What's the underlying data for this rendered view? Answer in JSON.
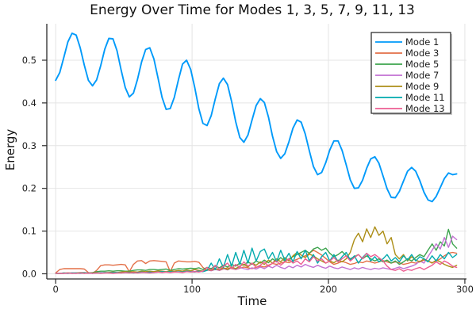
{
  "chart_data": {
    "type": "line",
    "title": "Energy Over Time for Modes 1, 3, 5, 7, 9, 11, 13",
    "xlabel": "Time",
    "ylabel": "Energy",
    "xlim": [
      -6.5,
      301.2
    ],
    "ylim": [
      -0.0121,
      0.5853
    ],
    "xticks": [
      0,
      100,
      200,
      300
    ],
    "yticks": [
      0.0,
      0.1,
      0.2,
      0.3,
      0.4,
      0.5
    ],
    "grid": true,
    "legend_position": "top-right",
    "background": "#ffffff",
    "grid_color": "#e4e4e4",
    "axis_color": "#2a2a2a",
    "text_color": "#1c1c1c",
    "x": [
      0,
      3,
      6,
      9,
      12,
      15,
      18,
      21,
      24,
      27,
      30,
      33,
      36,
      39,
      42,
      45,
      48,
      51,
      54,
      57,
      60,
      63,
      66,
      69,
      72,
      75,
      78,
      81,
      84,
      87,
      90,
      93,
      96,
      99,
      102,
      105,
      108,
      111,
      114,
      117,
      120,
      123,
      126,
      129,
      132,
      135,
      138,
      141,
      144,
      147,
      150,
      153,
      156,
      159,
      162,
      165,
      168,
      171,
      174,
      177,
      180,
      183,
      186,
      189,
      192,
      195,
      198,
      201,
      204,
      207,
      210,
      213,
      216,
      219,
      222,
      225,
      228,
      231,
      234,
      237,
      240,
      243,
      246,
      249,
      252,
      255,
      258,
      261,
      264,
      267,
      270,
      273,
      276,
      279,
      282,
      285,
      288,
      291,
      294
    ],
    "series": [
      {
        "name": "Mode 1",
        "color": "#009AFA",
        "values": [
          0.453,
          0.471,
          0.507,
          0.543,
          0.563,
          0.559,
          0.529,
          0.488,
          0.453,
          0.44,
          0.454,
          0.487,
          0.526,
          0.551,
          0.55,
          0.522,
          0.477,
          0.436,
          0.414,
          0.423,
          0.455,
          0.496,
          0.525,
          0.529,
          0.503,
          0.459,
          0.413,
          0.385,
          0.387,
          0.413,
          0.454,
          0.491,
          0.5,
          0.478,
          0.436,
          0.386,
          0.352,
          0.347,
          0.37,
          0.409,
          0.445,
          0.458,
          0.443,
          0.403,
          0.356,
          0.319,
          0.308,
          0.325,
          0.36,
          0.394,
          0.41,
          0.401,
          0.367,
          0.322,
          0.286,
          0.27,
          0.281,
          0.309,
          0.341,
          0.36,
          0.355,
          0.327,
          0.288,
          0.251,
          0.232,
          0.237,
          0.26,
          0.29,
          0.311,
          0.311,
          0.289,
          0.255,
          0.22,
          0.2,
          0.201,
          0.219,
          0.247,
          0.269,
          0.274,
          0.259,
          0.229,
          0.199,
          0.179,
          0.178,
          0.193,
          0.217,
          0.24,
          0.249,
          0.24,
          0.218,
          0.191,
          0.173,
          0.169,
          0.181,
          0.202,
          0.223,
          0.236,
          0.232,
          0.234
        ]
      },
      {
        "name": "Mode 3",
        "color": "#E36F47",
        "values": [
          0.002,
          0.01,
          0.012,
          0.012,
          0.012,
          0.012,
          0.012,
          0.011,
          0.003,
          0.001,
          0.008,
          0.019,
          0.021,
          0.021,
          0.02,
          0.021,
          0.022,
          0.021,
          0.005,
          0.022,
          0.03,
          0.031,
          0.024,
          0.03,
          0.031,
          0.03,
          0.029,
          0.028,
          0.005,
          0.025,
          0.03,
          0.029,
          0.028,
          0.028,
          0.029,
          0.027,
          0.015,
          0.008,
          0.01,
          0.012,
          0.008,
          0.011,
          0.014,
          0.012,
          0.01,
          0.013,
          0.016,
          0.014,
          0.012,
          0.015,
          0.018,
          0.016,
          0.02,
          0.024,
          0.022,
          0.025,
          0.028,
          0.026,
          0.03,
          0.034,
          0.038,
          0.042,
          0.048,
          0.055,
          0.05,
          0.044,
          0.036,
          0.028,
          0.022,
          0.025,
          0.029,
          0.026,
          0.022,
          0.024,
          0.028,
          0.026,
          0.03,
          0.028,
          0.025,
          0.028,
          0.031,
          0.028,
          0.025,
          0.028,
          0.026,
          0.022,
          0.024,
          0.027,
          0.025,
          0.028,
          0.032,
          0.03,
          0.026,
          0.03,
          0.035,
          0.042,
          0.048,
          0.05,
          0.048
        ]
      },
      {
        "name": "Mode 5",
        "color": "#3DA44E",
        "values": [
          0.001,
          0.001,
          0.002,
          0.002,
          0.002,
          0.002,
          0.003,
          0.003,
          0.002,
          0.003,
          0.005,
          0.006,
          0.006,
          0.007,
          0.006,
          0.007,
          0.007,
          0.006,
          0.006,
          0.008,
          0.009,
          0.009,
          0.008,
          0.01,
          0.01,
          0.009,
          0.01,
          0.011,
          0.008,
          0.01,
          0.012,
          0.011,
          0.012,
          0.013,
          0.012,
          0.014,
          0.01,
          0.015,
          0.012,
          0.018,
          0.014,
          0.02,
          0.016,
          0.022,
          0.018,
          0.025,
          0.02,
          0.028,
          0.022,
          0.03,
          0.025,
          0.032,
          0.026,
          0.035,
          0.028,
          0.038,
          0.03,
          0.035,
          0.04,
          0.045,
          0.05,
          0.055,
          0.048,
          0.058,
          0.062,
          0.055,
          0.06,
          0.048,
          0.04,
          0.045,
          0.052,
          0.042,
          0.035,
          0.04,
          0.045,
          0.035,
          0.042,
          0.035,
          0.03,
          0.035,
          0.028,
          0.032,
          0.025,
          0.03,
          0.022,
          0.028,
          0.035,
          0.03,
          0.038,
          0.045,
          0.04,
          0.055,
          0.07,
          0.055,
          0.075,
          0.065,
          0.104,
          0.07,
          0.06
        ]
      },
      {
        "name": "Mode 7",
        "color": "#C371D2",
        "values": [
          0.001,
          0.001,
          0.001,
          0.001,
          0.002,
          0.001,
          0.002,
          0.002,
          0.001,
          0.002,
          0.002,
          0.003,
          0.002,
          0.003,
          0.003,
          0.002,
          0.003,
          0.004,
          0.003,
          0.004,
          0.003,
          0.004,
          0.004,
          0.003,
          0.005,
          0.004,
          0.005,
          0.004,
          0.005,
          0.006,
          0.004,
          0.006,
          0.005,
          0.007,
          0.005,
          0.008,
          0.006,
          0.009,
          0.007,
          0.01,
          0.008,
          0.012,
          0.009,
          0.014,
          0.01,
          0.015,
          0.012,
          0.01,
          0.014,
          0.011,
          0.016,
          0.012,
          0.018,
          0.014,
          0.02,
          0.015,
          0.012,
          0.018,
          0.014,
          0.02,
          0.016,
          0.022,
          0.018,
          0.015,
          0.02,
          0.016,
          0.013,
          0.018,
          0.014,
          0.012,
          0.016,
          0.013,
          0.01,
          0.014,
          0.011,
          0.015,
          0.012,
          0.01,
          0.013,
          0.011,
          0.014,
          0.012,
          0.01,
          0.013,
          0.016,
          0.012,
          0.015,
          0.018,
          0.022,
          0.03,
          0.025,
          0.04,
          0.055,
          0.07,
          0.058,
          0.085,
          0.062,
          0.088,
          0.08
        ]
      },
      {
        "name": "Mode 9",
        "color": "#AC8E17",
        "values": [
          0.001,
          0.001,
          0.001,
          0.002,
          0.001,
          0.002,
          0.002,
          0.001,
          0.002,
          0.002,
          0.003,
          0.002,
          0.003,
          0.003,
          0.004,
          0.003,
          0.004,
          0.005,
          0.004,
          0.005,
          0.004,
          0.006,
          0.005,
          0.006,
          0.005,
          0.007,
          0.006,
          0.005,
          0.007,
          0.006,
          0.008,
          0.006,
          0.009,
          0.007,
          0.01,
          0.008,
          0.006,
          0.01,
          0.008,
          0.012,
          0.009,
          0.014,
          0.01,
          0.016,
          0.012,
          0.018,
          0.022,
          0.016,
          0.025,
          0.02,
          0.028,
          0.022,
          0.032,
          0.025,
          0.035,
          0.028,
          0.038,
          0.03,
          0.042,
          0.05,
          0.044,
          0.038,
          0.046,
          0.042,
          0.035,
          0.03,
          0.025,
          0.03,
          0.026,
          0.032,
          0.028,
          0.035,
          0.05,
          0.08,
          0.095,
          0.075,
          0.105,
          0.085,
          0.11,
          0.09,
          0.1,
          0.07,
          0.085,
          0.045,
          0.035,
          0.045,
          0.03,
          0.04,
          0.032,
          0.028,
          0.035,
          0.03,
          0.025,
          0.032,
          0.028,
          0.022,
          0.018,
          0.015,
          0.02
        ]
      },
      {
        "name": "Mode 11",
        "color": "#00AAAE",
        "values": [
          0.001,
          0.001,
          0.002,
          0.001,
          0.002,
          0.002,
          0.001,
          0.002,
          0.002,
          0.001,
          0.002,
          0.002,
          0.003,
          0.002,
          0.003,
          0.003,
          0.002,
          0.003,
          0.003,
          0.002,
          0.003,
          0.004,
          0.003,
          0.004,
          0.003,
          0.004,
          0.005,
          0.004,
          0.005,
          0.004,
          0.005,
          0.004,
          0.006,
          0.005,
          0.004,
          0.006,
          0.005,
          0.008,
          0.025,
          0.01,
          0.035,
          0.015,
          0.045,
          0.018,
          0.05,
          0.022,
          0.055,
          0.025,
          0.06,
          0.03,
          0.052,
          0.058,
          0.035,
          0.05,
          0.028,
          0.055,
          0.032,
          0.048,
          0.028,
          0.052,
          0.035,
          0.055,
          0.03,
          0.045,
          0.025,
          0.04,
          0.05,
          0.03,
          0.045,
          0.028,
          0.04,
          0.05,
          0.032,
          0.042,
          0.025,
          0.038,
          0.048,
          0.03,
          0.04,
          0.028,
          0.035,
          0.045,
          0.03,
          0.038,
          0.028,
          0.042,
          0.032,
          0.045,
          0.03,
          0.04,
          0.035,
          0.028,
          0.042,
          0.03,
          0.045,
          0.035,
          0.05,
          0.038,
          0.045
        ]
      },
      {
        "name": "Mode 13",
        "color": "#ED5E92",
        "values": [
          0.001,
          0.001,
          0.001,
          0.002,
          0.001,
          0.001,
          0.002,
          0.001,
          0.002,
          0.001,
          0.002,
          0.001,
          0.002,
          0.002,
          0.001,
          0.002,
          0.002,
          0.003,
          0.002,
          0.003,
          0.002,
          0.003,
          0.003,
          0.002,
          0.003,
          0.004,
          0.003,
          0.004,
          0.003,
          0.004,
          0.004,
          0.003,
          0.005,
          0.004,
          0.005,
          0.004,
          0.006,
          0.015,
          0.008,
          0.02,
          0.01,
          0.018,
          0.025,
          0.012,
          0.022,
          0.015,
          0.028,
          0.018,
          0.025,
          0.015,
          0.02,
          0.028,
          0.018,
          0.025,
          0.03,
          0.02,
          0.028,
          0.035,
          0.025,
          0.03,
          0.022,
          0.035,
          0.028,
          0.04,
          0.03,
          0.035,
          0.025,
          0.03,
          0.038,
          0.028,
          0.035,
          0.042,
          0.03,
          0.038,
          0.045,
          0.035,
          0.048,
          0.04,
          0.045,
          0.038,
          0.03,
          0.018,
          0.01,
          0.008,
          0.012,
          0.006,
          0.01,
          0.008,
          0.012,
          0.015,
          0.01,
          0.015,
          0.02,
          0.028,
          0.022,
          0.03,
          0.025,
          0.018,
          0.015
        ]
      }
    ]
  }
}
